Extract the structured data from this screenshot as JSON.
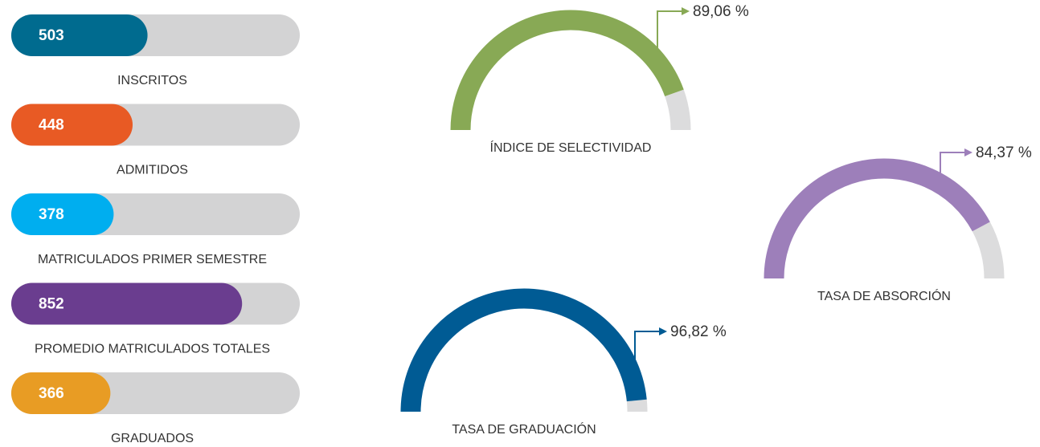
{
  "chart_data": [
    {
      "type": "bar",
      "categories": [
        "INSCRITOS",
        "ADMITIDOS",
        "MATRICULADOS PRIMER SEMESTRE",
        "PROMEDIO MATRICULADOS TOTALES",
        "GRADUADOS"
      ],
      "values": [
        503,
        448,
        378,
        852,
        366
      ],
      "colors": [
        "#006b8f",
        "#e85a24",
        "#00aeef",
        "#6a3d8f",
        "#e89c24"
      ],
      "track_color": "#d3d3d4",
      "xlim": [
        0,
        1065
      ]
    },
    {
      "type": "gauge",
      "title": "ÍNDICE DE SELECTIVIDAD",
      "value": 89.06,
      "value_label": "89,06 %",
      "color": "#88a955",
      "ylim": [
        0,
        100
      ]
    },
    {
      "type": "gauge",
      "title": "TASA DE ABSORCIÓN",
      "value": 84.37,
      "value_label": "84,37 %",
      "color": "#9d7fba",
      "ylim": [
        0,
        100
      ]
    },
    {
      "type": "gauge",
      "title": "TASA DE GRADUACIÓN",
      "value": 96.82,
      "value_label": "96,82 %",
      "color": "#005b94",
      "ylim": [
        0,
        100
      ]
    }
  ]
}
